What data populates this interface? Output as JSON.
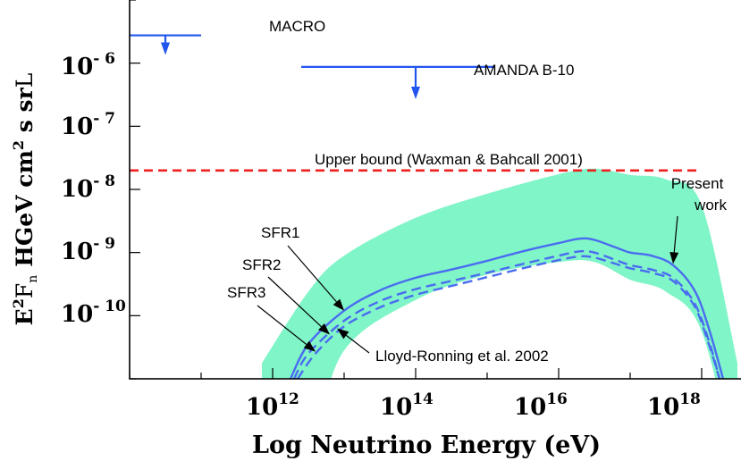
{
  "chart_data": {
    "type": "line",
    "title": "",
    "xlabel": "Log Neutrino Energy (eV)",
    "ylabel": {
      "base": "E",
      "base_sup": "2",
      "flux_symbol": "F",
      "flux_sub": "n",
      "open": "H",
      "units_a": "GeV cm",
      "units_a_sup": "2",
      "units_b": " s sr",
      "close": "L"
    },
    "xscale": "log10",
    "yscale": "log10",
    "xlim": [
      10.0,
      18.55
    ],
    "ylim": [
      -11.0,
      -5.0
    ],
    "x_ticks": [
      {
        "base": "10",
        "exp": "12",
        "value": 12
      },
      {
        "base": "10",
        "exp": "14",
        "value": 14
      },
      {
        "base": "10",
        "exp": "16",
        "value": 16
      },
      {
        "base": "10",
        "exp": "18",
        "value": 18
      }
    ],
    "y_ticks": [
      {
        "base": "10",
        "exp": "- 6",
        "value": -6
      },
      {
        "base": "10",
        "exp": "- 7",
        "value": -7
      },
      {
        "base": "10",
        "exp": "- 8",
        "value": -8
      },
      {
        "base": "10",
        "exp": "- 9",
        "value": -9
      },
      {
        "base": "10",
        "exp": "- 10",
        "value": -10
      }
    ],
    "colors": {
      "band": "#80f5c8",
      "model": "#4a6cf0",
      "limit": "#2255ee",
      "bound": "#ee2020"
    },
    "upper_limits": [
      {
        "name": "MACRO",
        "x_range": [
          10.0,
          11.0
        ],
        "y": -5.56,
        "arrow_x": 10.5,
        "arrow_to": -5.87
      },
      {
        "name": "AMANDA B-10",
        "x_range": [
          12.4,
          15.1
        ],
        "y": -6.06,
        "arrow_x": 14.0,
        "arrow_to": -6.57
      }
    ],
    "series": [
      {
        "name": "Upper bound (Waxman & Bahcall 2001)",
        "style": "dashed",
        "x": [
          10.0,
          16.0,
          17.95
        ],
        "y": [
          -7.7,
          -7.7,
          -7.7
        ]
      },
      {
        "name": "Present work band",
        "style": "band",
        "x": [
          11.85,
          12.5,
          13.0,
          14.0,
          15.0,
          16.0,
          16.5,
          17.0,
          17.5,
          18.0,
          18.5
        ],
        "upper": [
          -10.75,
          -9.62,
          -9.05,
          -8.45,
          -8.07,
          -7.76,
          -7.67,
          -7.77,
          -7.84,
          -8.25,
          -10.75
        ],
        "lower": [
          -12.5,
          -12.1,
          -10.55,
          -9.75,
          -9.35,
          -9.15,
          -9.15,
          -9.43,
          -9.62,
          -10.25,
          -12.5
        ]
      },
      {
        "name": "SFR1",
        "style": "solid",
        "x": [
          12.25,
          12.5,
          13.0,
          13.5,
          14.0,
          14.5,
          15.0,
          15.5,
          16.0,
          16.3,
          16.5,
          16.8,
          17.0,
          17.3,
          17.6,
          17.9,
          18.1,
          18.3
        ],
        "y": [
          -11.0,
          -10.45,
          -9.92,
          -9.6,
          -9.4,
          -9.27,
          -9.13,
          -8.98,
          -8.85,
          -8.78,
          -8.8,
          -8.92,
          -9.0,
          -9.05,
          -9.2,
          -9.6,
          -10.2,
          -11.0
        ]
      },
      {
        "name": "SFR2",
        "style": "dashed",
        "x": [
          12.3,
          12.5,
          13.0,
          13.5,
          14.0,
          14.5,
          15.0,
          15.5,
          16.0,
          16.3,
          16.5,
          16.8,
          17.0,
          17.3,
          17.6,
          17.9,
          18.1,
          18.25
        ],
        "y": [
          -11.0,
          -10.6,
          -10.08,
          -9.77,
          -9.58,
          -9.45,
          -9.32,
          -9.18,
          -9.05,
          -8.98,
          -9.0,
          -9.12,
          -9.2,
          -9.27,
          -9.4,
          -9.8,
          -10.4,
          -11.0
        ]
      },
      {
        "name": "SFR3",
        "style": "dashed",
        "x": [
          12.35,
          12.6,
          13.0,
          13.5,
          14.0,
          14.5,
          15.0,
          15.5,
          16.0,
          16.3,
          16.5,
          16.8,
          17.0,
          17.3,
          17.6,
          17.9,
          18.1,
          18.25
        ],
        "y": [
          -11.0,
          -10.6,
          -10.17,
          -9.87,
          -9.67,
          -9.53,
          -9.39,
          -9.25,
          -9.12,
          -9.06,
          -9.08,
          -9.18,
          -9.25,
          -9.32,
          -9.45,
          -9.85,
          -10.45,
          -11.0
        ]
      }
    ],
    "annotations": [
      {
        "text": "MACRO",
        "target": "MACRO"
      },
      {
        "text": "AMANDA B-10",
        "target": "AMANDA B-10"
      },
      {
        "text": "Upper bound (Waxman & Bahcall 2001)",
        "target": "Upper bound"
      },
      {
        "text": "Present",
        "line2": "work",
        "arrow_to": [
          17.6,
          -9.18
        ]
      },
      {
        "text": "SFR1",
        "arrow_to": [
          13.0,
          -9.92
        ]
      },
      {
        "text": "SFR2",
        "arrow_to": [
          12.8,
          -10.3
        ]
      },
      {
        "text": "SFR3",
        "arrow_to": [
          12.6,
          -10.57
        ]
      },
      {
        "text": "Lloyd-Ronning et al. 2002",
        "arrow_to": [
          12.9,
          -10.2
        ]
      }
    ]
  }
}
